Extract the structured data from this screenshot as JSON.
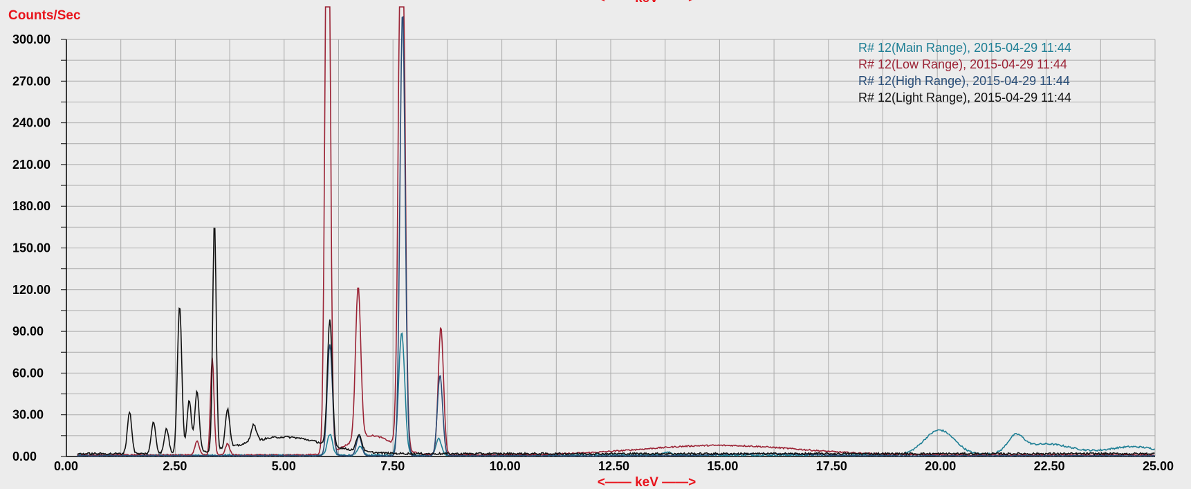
{
  "chart_data": {
    "type": "line",
    "ylabel": "Counts/Sec",
    "xlabel": "<—— keV ——>",
    "top_label": "<—— keV ——>",
    "xlim": [
      0,
      25
    ],
    "ylim": [
      0,
      300
    ],
    "y_ticks": [
      0,
      30,
      60,
      90,
      120,
      150,
      180,
      210,
      240,
      270,
      300
    ],
    "y_tick_labels": [
      "0.00",
      "30.00",
      "60.00",
      "90.00",
      "120.00",
      "150.00",
      "180.00",
      "210.00",
      "240.00",
      "270.00",
      "300.00"
    ],
    "x_ticks": [
      0,
      2.5,
      5,
      7.5,
      10,
      12.5,
      15,
      17.5,
      20,
      22.5,
      25
    ],
    "x_tick_labels": [
      "0.00",
      "2.50",
      "5.00",
      "7.50",
      "10.00",
      "12.50",
      "15.00",
      "17.50",
      "20.00",
      "22.50",
      "25.00"
    ],
    "x_minor_step": 1.25,
    "y_minor_step": 15,
    "grid": true,
    "legend_position": "top-right",
    "colors": {
      "label_red": "#e8141c",
      "grid": "#aaaaaa",
      "background": "#ececec"
    },
    "series": [
      {
        "name": "R# 12(Main Range), 2015-04-29 11:44",
        "color": "#1f7f95",
        "baseline": 1,
        "peaks": [
          [
            6.05,
            15,
            0.06
          ],
          [
            6.75,
            6,
            0.06
          ],
          [
            7.7,
            88,
            0.07
          ],
          [
            8.55,
            12,
            0.06
          ],
          [
            13.8,
            2,
            0.1
          ],
          [
            20.05,
            18,
            0.35
          ],
          [
            21.8,
            11,
            0.18
          ],
          [
            22.5,
            8,
            0.6
          ],
          [
            24.5,
            6,
            0.6
          ]
        ],
        "noise": 1.2
      },
      {
        "name": "R# 12(Low Range), 2015-04-29 11:44",
        "color": "#9b2335",
        "baseline": 1,
        "peaks": [
          [
            3.0,
            10,
            0.05
          ],
          [
            3.35,
            70,
            0.04
          ],
          [
            3.7,
            8,
            0.05
          ],
          [
            6.0,
            520,
            0.055
          ],
          [
            6.7,
            110,
            0.06
          ],
          [
            7.7,
            480,
            0.065
          ],
          [
            8.6,
            92,
            0.06
          ],
          [
            7.0,
            14,
            0.5
          ],
          [
            15.0,
            7,
            1.8
          ]
        ],
        "noise": 1.0
      },
      {
        "name": "R# 12(High Range), 2015-04-29 11:44",
        "color": "#2a4e78",
        "baseline": 0.5,
        "peaks": [
          [
            6.05,
            80,
            0.06
          ],
          [
            6.72,
            14,
            0.06
          ],
          [
            7.72,
            320,
            0.06
          ],
          [
            8.58,
            58,
            0.06
          ],
          [
            16.0,
            1.5,
            1.0
          ]
        ],
        "noise": 0.6
      },
      {
        "name": "R# 12(Light Range), 2015-04-29 11:44",
        "color": "#111111",
        "baseline": 2,
        "peaks": [
          [
            1.45,
            30,
            0.05
          ],
          [
            2.0,
            23,
            0.05
          ],
          [
            2.3,
            18,
            0.05
          ],
          [
            2.6,
            106,
            0.05
          ],
          [
            2.82,
            38,
            0.05
          ],
          [
            3.0,
            44,
            0.05
          ],
          [
            3.4,
            165,
            0.04
          ],
          [
            3.7,
            28,
            0.05
          ],
          [
            4.3,
            12,
            0.06
          ],
          [
            5.0,
            12,
            0.9
          ],
          [
            6.05,
            90,
            0.055
          ],
          [
            6.72,
            12,
            0.06
          ]
        ],
        "noise": 1.4
      }
    ]
  }
}
